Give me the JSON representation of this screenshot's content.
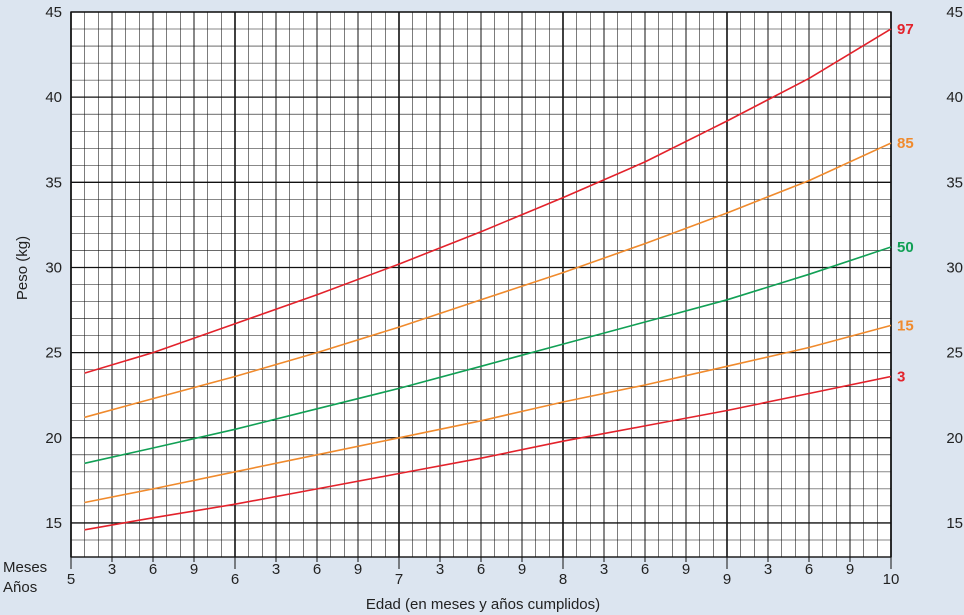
{
  "chart_data": {
    "type": "line",
    "xlabel": "Edad (en meses y años cumplidos)",
    "ylabel": "Peso (kg)",
    "row_labels": {
      "months": "Meses",
      "years": "Años"
    },
    "y_ticks": [
      "15",
      "20",
      "25",
      "30",
      "35",
      "40",
      "45"
    ],
    "ylim": [
      13,
      45
    ],
    "xlim": [
      5,
      10
    ],
    "x_year_ticks": [
      {
        "value": 5,
        "label": "5"
      },
      {
        "value": 6,
        "label": "6"
      },
      {
        "value": 7,
        "label": "7"
      },
      {
        "value": 8,
        "label": "8"
      },
      {
        "value": 9,
        "label": "9"
      },
      {
        "value": 10,
        "label": "10"
      }
    ],
    "x_month_ticks": [
      {
        "value": 5.25,
        "label": "3"
      },
      {
        "value": 5.5,
        "label": "6"
      },
      {
        "value": 5.75,
        "label": "9"
      },
      {
        "value": 6.25,
        "label": "3"
      },
      {
        "value": 6.5,
        "label": "6"
      },
      {
        "value": 6.75,
        "label": "9"
      },
      {
        "value": 7.25,
        "label": "3"
      },
      {
        "value": 7.5,
        "label": "6"
      },
      {
        "value": 7.75,
        "label": "9"
      },
      {
        "value": 8.25,
        "label": "3"
      },
      {
        "value": 8.5,
        "label": "6"
      },
      {
        "value": 8.75,
        "label": "9"
      },
      {
        "value": 9.25,
        "label": "3"
      },
      {
        "value": 9.5,
        "label": "6"
      },
      {
        "value": 9.75,
        "label": "9"
      }
    ],
    "grid": true,
    "x": [
      5.083,
      5.5,
      6.0,
      6.5,
      7.0,
      7.5,
      8.0,
      8.5,
      9.0,
      9.5,
      10.0
    ],
    "series": [
      {
        "name": "97",
        "color": "#e3222b",
        "values": [
          23.8,
          25.0,
          26.7,
          28.4,
          30.2,
          32.1,
          34.1,
          36.2,
          38.6,
          41.1,
          44.0
        ]
      },
      {
        "name": "85",
        "color": "#f08a2c",
        "values": [
          21.2,
          22.3,
          23.6,
          25.0,
          26.5,
          28.1,
          29.7,
          31.4,
          33.2,
          35.1,
          37.3
        ]
      },
      {
        "name": "50",
        "color": "#11a055",
        "values": [
          18.5,
          19.4,
          20.5,
          21.7,
          22.9,
          24.2,
          25.5,
          26.8,
          28.1,
          29.6,
          31.2
        ]
      },
      {
        "name": "15",
        "color": "#f08a2c",
        "values": [
          16.2,
          17.0,
          18.0,
          19.0,
          20.0,
          21.0,
          22.1,
          23.1,
          24.2,
          25.3,
          26.6
        ]
      },
      {
        "name": "3",
        "color": "#e3222b",
        "values": [
          14.6,
          15.3,
          16.1,
          17.0,
          17.9,
          18.8,
          19.8,
          20.7,
          21.6,
          22.6,
          23.6
        ]
      }
    ]
  }
}
